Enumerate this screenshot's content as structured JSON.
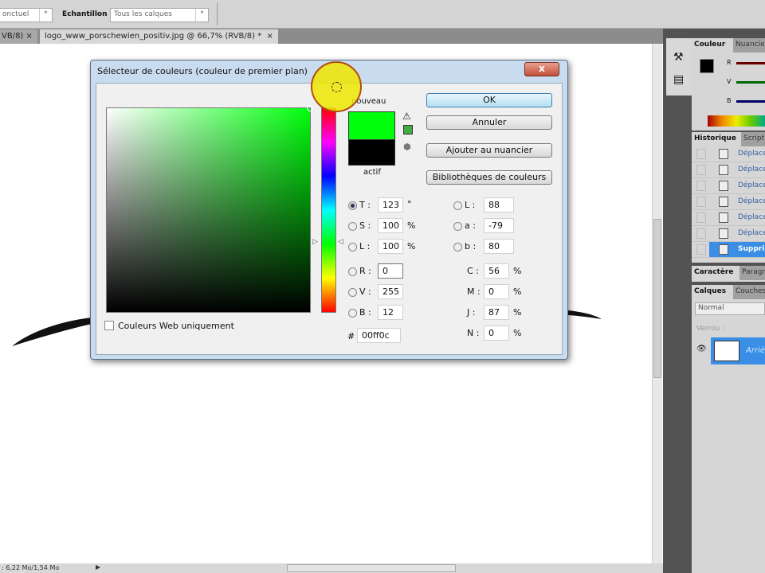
{
  "options_bar": {
    "mode_value": "onctuel",
    "sample_label": "Echantillon :",
    "sample_value": "Tous les calques"
  },
  "tabs": [
    {
      "label": "VB/8)",
      "close": "×"
    },
    {
      "label": "logo_www_porschewien_positiv.jpg @ 66,7% (RVB/8) *",
      "close": "×"
    }
  ],
  "status": {
    "doc_size": ": 6,22 Mo/1,54 Mo"
  },
  "dialog": {
    "title": "Sélecteur de couleurs (couleur de premier plan)",
    "close": "x",
    "new_label": "nouveau",
    "current_label": "actif",
    "new_color": "#00ff0c",
    "current_color": "#000000",
    "buttons": {
      "ok": "OK",
      "cancel": "Annuler",
      "add_swatch": "Ajouter au nuancier",
      "libraries": "Bibliothèques de couleurs"
    },
    "web_only": "Couleurs Web uniquement",
    "hsb": [
      {
        "label": "T :",
        "value": "123",
        "unit": "°"
      },
      {
        "label": "S :",
        "value": "100",
        "unit": "%"
      },
      {
        "label": "L :",
        "value": "100",
        "unit": "%"
      }
    ],
    "rgb": [
      {
        "label": "R :",
        "value": "0"
      },
      {
        "label": "V :",
        "value": "255"
      },
      {
        "label": "B :",
        "value": "12"
      }
    ],
    "lab": [
      {
        "label": "L :",
        "value": "88"
      },
      {
        "label": "a :",
        "value": "-79"
      },
      {
        "label": "b :",
        "value": "80"
      }
    ],
    "cmyk": [
      {
        "label": "C :",
        "value": "56",
        "unit": "%"
      },
      {
        "label": "M :",
        "value": "0",
        "unit": "%"
      },
      {
        "label": "J :",
        "value": "87",
        "unit": "%"
      },
      {
        "label": "N :",
        "value": "0",
        "unit": "%"
      }
    ],
    "hex_label": "#",
    "hex": "00ff0c"
  },
  "panels": {
    "color": {
      "tabs": [
        "Couleur",
        "Nuancier"
      ],
      "channels": [
        "R",
        "V",
        "B"
      ]
    },
    "history": {
      "tabs": [
        "Historique",
        "Script"
      ],
      "items": [
        "Déplacer",
        "Déplacer",
        "Déplacer",
        "Déplacer",
        "Déplacer",
        "Déplacer",
        "Supprimer"
      ]
    },
    "character": {
      "tabs": [
        "Caractère",
        "Paragraphe"
      ]
    },
    "layers": {
      "tabs": [
        "Calques",
        "Couches"
      ],
      "blend": "Normal",
      "lock_label": "Verrou :",
      "layer_name": "Arrière-plan"
    }
  }
}
